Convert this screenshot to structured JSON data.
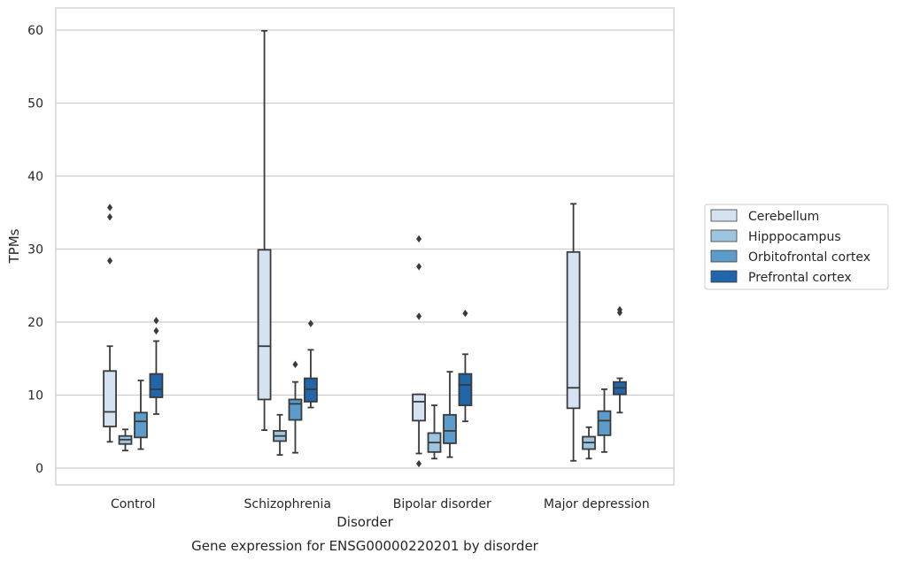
{
  "chart_data": {
    "type": "box",
    "title": "Gene expression for ENSG00000220201 by disorder",
    "xlabel": "Disorder",
    "ylabel": "TPMs",
    "ylim": [
      -2.2,
      63
    ],
    "yticks": [
      0,
      10,
      20,
      30,
      40,
      50,
      60
    ],
    "grid": "horizontal",
    "legend_position": "right",
    "categories": [
      "Control",
      "Schizophrenia",
      "Bipolar disorder",
      "Major depression"
    ],
    "series": [
      {
        "name": "Cerebellum",
        "color": "#d4e2f2",
        "boxes": [
          {
            "whisker_low": 3.6,
            "q1": 5.7,
            "median": 7.7,
            "q3": 13.3,
            "whisker_high": 16.7,
            "outliers": [
              28.4,
              34.4,
              35.7
            ]
          },
          {
            "whisker_low": 5.2,
            "q1": 9.4,
            "median": 16.7,
            "q3": 29.9,
            "whisker_high": 59.9,
            "outliers": []
          },
          {
            "whisker_low": 2.0,
            "q1": 6.5,
            "median": 9.1,
            "q3": 10.1,
            "whisker_high": 10.1,
            "outliers": [
              0.6,
              20.8,
              27.6,
              31.4
            ]
          },
          {
            "whisker_low": 1.0,
            "q1": 8.2,
            "median": 11.0,
            "q3": 29.6,
            "whisker_high": 36.2,
            "outliers": []
          }
        ]
      },
      {
        "name": "Hipppocampus",
        "color": "#9dc5e0",
        "boxes": [
          {
            "whisker_low": 2.4,
            "q1": 3.3,
            "median": 3.9,
            "q3": 4.4,
            "whisker_high": 5.3,
            "outliers": []
          },
          {
            "whisker_low": 1.8,
            "q1": 3.7,
            "median": 4.4,
            "q3": 5.1,
            "whisker_high": 7.3,
            "outliers": []
          },
          {
            "whisker_low": 1.3,
            "q1": 2.2,
            "median": 3.5,
            "q3": 4.8,
            "whisker_high": 8.6,
            "outliers": []
          },
          {
            "whisker_low": 1.3,
            "q1": 2.6,
            "median": 3.5,
            "q3": 4.3,
            "whisker_high": 5.6,
            "outliers": []
          }
        ]
      },
      {
        "name": "Orbitofrontal cortex",
        "color": "#5b9ccb",
        "boxes": [
          {
            "whisker_low": 2.6,
            "q1": 4.2,
            "median": 6.4,
            "q3": 7.6,
            "whisker_high": 12.0,
            "outliers": []
          },
          {
            "whisker_low": 2.1,
            "q1": 6.6,
            "median": 8.8,
            "q3": 9.4,
            "whisker_high": 11.8,
            "outliers": [
              14.2
            ]
          },
          {
            "whisker_low": 1.5,
            "q1": 3.4,
            "median": 5.1,
            "q3": 7.3,
            "whisker_high": 13.2,
            "outliers": []
          },
          {
            "whisker_low": 2.2,
            "q1": 4.5,
            "median": 6.5,
            "q3": 7.8,
            "whisker_high": 10.8,
            "outliers": []
          }
        ]
      },
      {
        "name": "Prefrontal cortex",
        "color": "#2165ab",
        "boxes": [
          {
            "whisker_low": 7.4,
            "q1": 9.7,
            "median": 10.8,
            "q3": 12.9,
            "whisker_high": 17.4,
            "outliers": [
              18.8,
              20.2
            ]
          },
          {
            "whisker_low": 8.3,
            "q1": 9.1,
            "median": 10.8,
            "q3": 12.3,
            "whisker_high": 16.2,
            "outliers": [
              19.8
            ]
          },
          {
            "whisker_low": 6.4,
            "q1": 8.6,
            "median": 11.4,
            "q3": 12.9,
            "whisker_high": 15.6,
            "outliers": [
              21.2
            ]
          },
          {
            "whisker_low": 7.6,
            "q1": 10.1,
            "median": 11.0,
            "q3": 11.8,
            "whisker_high": 12.3,
            "outliers": [
              21.3,
              21.7
            ]
          }
        ]
      }
    ]
  }
}
